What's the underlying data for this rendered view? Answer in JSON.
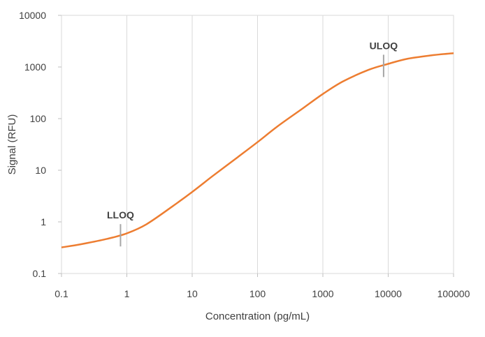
{
  "chart_data": {
    "type": "line",
    "xlabel": "Concentration (pg/mL)",
    "ylabel": "Signal (RFU)",
    "x_scale": "log",
    "y_scale": "log",
    "xlim": [
      0.1,
      100000
    ],
    "ylim": [
      0.1,
      10000
    ],
    "x_ticks": [
      "0.1",
      "1",
      "10",
      "100",
      "1000",
      "10000",
      "100000"
    ],
    "y_ticks": [
      "0.1",
      "1",
      "10",
      "100",
      "1000",
      "10000"
    ],
    "grid": "vertical",
    "series": [
      {
        "color": "#ED7D31",
        "x": [
          0.1,
          0.2,
          0.5,
          1,
          2,
          5,
          10,
          20,
          50,
          100,
          200,
          500,
          1000,
          2000,
          5000,
          10000,
          20000,
          50000,
          100000
        ],
        "y": [
          0.32,
          0.37,
          0.47,
          0.6,
          0.9,
          2,
          3.8,
          7.5,
          18,
          35,
          70,
          160,
          300,
          520,
          880,
          1150,
          1450,
          1700,
          1850
        ]
      }
    ],
    "annotations": [
      {
        "label": "LLOQ",
        "x": 0.8,
        "y": 0.55
      },
      {
        "label": "ULOQ",
        "x": 8500,
        "y": 1050
      }
    ]
  }
}
